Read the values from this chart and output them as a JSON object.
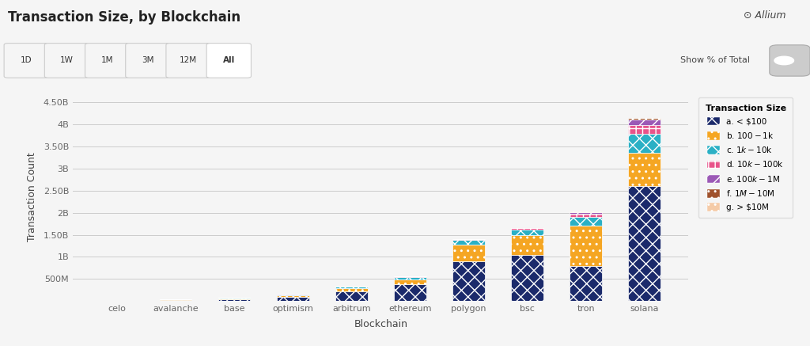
{
  "blockchains": [
    "celo",
    "avalanche",
    "base",
    "optimism",
    "arbitrum",
    "ethereum",
    "polygon",
    "bsc",
    "tron",
    "solana"
  ],
  "categories": [
    "a. < $100",
    "b. $100 - $1k",
    "c. $1k - $10k",
    "d. $10k - $100k",
    "e. $100k - $1M",
    "f. $1M - $10M",
    "g. > $10M"
  ],
  "colors": [
    "#1b2a6b",
    "#f5a623",
    "#2ab0c5",
    "#e8538a",
    "#9b59b6",
    "#a0522d",
    "#f5cba7"
  ],
  "values": {
    "celo": [
      5000000,
      2000000,
      1000000,
      500000,
      200000,
      50000,
      20000
    ],
    "avalanche": [
      30000000,
      10000000,
      5000000,
      2000000,
      800000,
      200000,
      50000
    ],
    "base": [
      45000000,
      15000000,
      7000000,
      3000000,
      1000000,
      300000,
      80000
    ],
    "optimism": [
      100000000,
      35000000,
      15000000,
      5000000,
      2000000,
      500000,
      150000
    ],
    "arbitrum": [
      220000000,
      70000000,
      30000000,
      8000000,
      3000000,
      800000,
      200000
    ],
    "ethereum": [
      380000000,
      110000000,
      50000000,
      15000000,
      5000000,
      1500000,
      500000
    ],
    "polygon": [
      900000000,
      380000000,
      100000000,
      20000000,
      6000000,
      1500000,
      400000
    ],
    "bsc": [
      1050000000,
      450000000,
      120000000,
      30000000,
      8000000,
      2000000,
      600000
    ],
    "tron": [
      800000000,
      900000000,
      200000000,
      80000000,
      30000000,
      8000000,
      2000000
    ],
    "solana": [
      2600000000,
      750000000,
      430000000,
      200000000,
      120000000,
      40000000,
      10000000
    ]
  },
  "title": "Transaction Size, by Blockchain",
  "xlabel": "Blockchain",
  "ylabel": "Transaction Count",
  "yticks": [
    0,
    500000000,
    1000000000,
    1500000000,
    2000000000,
    2500000000,
    3000000000,
    3500000000,
    4000000000,
    4500000000
  ],
  "ytick_labels": [
    "",
    "500M",
    "1B",
    "1.50B",
    "2B",
    "2.50B",
    "3B",
    "3.50B",
    "4B",
    "4.50B"
  ],
  "background_color": "#f5f5f5",
  "plot_background": "#f5f5f5",
  "bar_width": 0.55,
  "filter_labels": [
    "1D",
    "1W",
    "1M",
    "3M",
    "12M",
    "All"
  ],
  "filter_active": "All"
}
